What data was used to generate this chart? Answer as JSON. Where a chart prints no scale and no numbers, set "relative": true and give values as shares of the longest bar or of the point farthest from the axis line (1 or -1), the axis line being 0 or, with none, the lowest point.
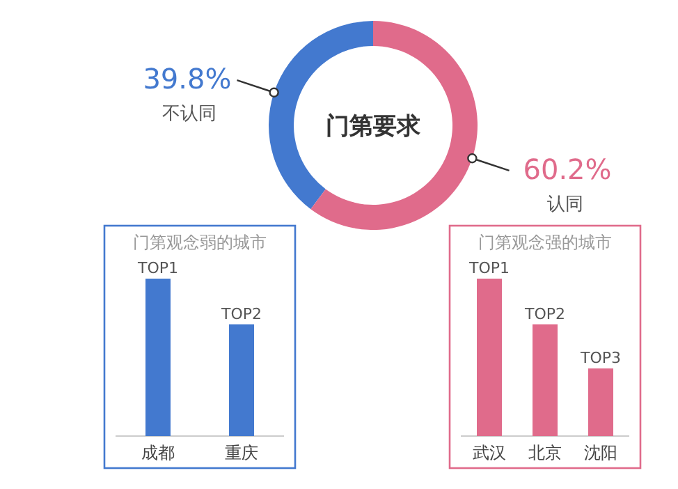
{
  "chart_data": [
    {
      "type": "donut",
      "title": "门第要求",
      "categories": [
        "不认同",
        "认同"
      ],
      "values": [
        39.8,
        60.2
      ],
      "colors": [
        "#4379cf",
        "#e06b8b"
      ],
      "value_labels": [
        "39.8%",
        "60.2%"
      ]
    },
    {
      "type": "bar",
      "relative": true,
      "title": "门第观念弱的城市",
      "categories": [
        "成都",
        "重庆"
      ],
      "values": [
        1,
        0.71
      ],
      "color": "#4379cf",
      "annotations": [
        {
          "text": "TOP1",
          "x": "成都",
          "y": 1
        },
        {
          "text": "TOP2",
          "x": "重庆",
          "y": 0.71
        }
      ]
    },
    {
      "type": "bar",
      "relative": true,
      "title": "门第观念强的城市",
      "categories": [
        "武汉",
        "北京",
        "沈阳"
      ],
      "values": [
        1,
        0.71,
        0.43
      ],
      "color": "#e06b8b",
      "annotations": [
        {
          "text": "TOP1",
          "x": "武汉",
          "y": 1
        },
        {
          "text": "TOP2",
          "x": "北京",
          "y": 0.71
        },
        {
          "text": "TOP3",
          "x": "沈阳",
          "y": 0.43
        }
      ]
    }
  ]
}
